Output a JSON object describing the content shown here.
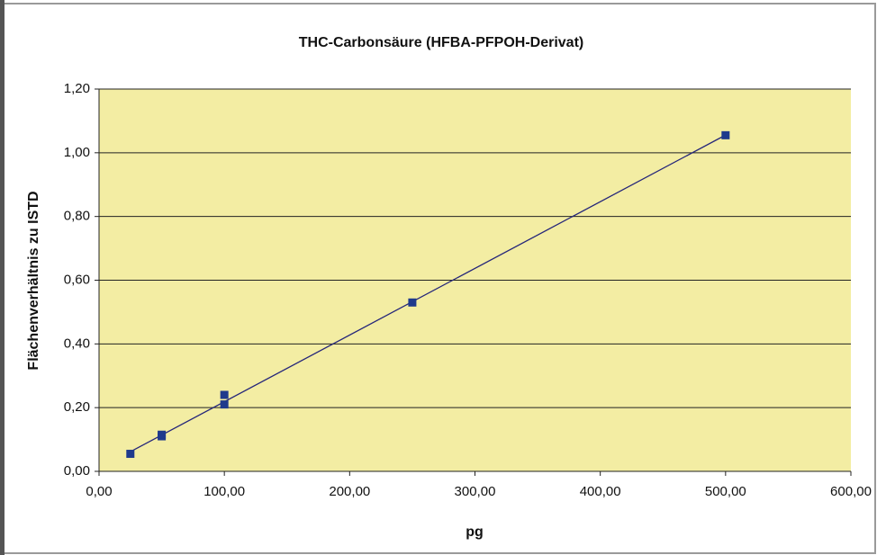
{
  "chart_data": {
    "type": "scatter",
    "title": "THC-Carbonsäure (HFBA-PFPOH-Derivat)",
    "x_label": "pg",
    "y_label": "Flächenverhältnis zu ISTD",
    "x": [
      25,
      50,
      50,
      100,
      100,
      250,
      500
    ],
    "values": [
      0.055,
      0.11,
      0.115,
      0.21,
      0.24,
      0.53,
      1.055
    ],
    "color": "#1f3a8c",
    "trendline": "linear",
    "trendline_color": "#25267a",
    "plot_background": "#f3eda3",
    "grid": true,
    "xlim": [
      0,
      600
    ],
    "xticks": [
      {
        "value": 0,
        "label": "0,00"
      },
      {
        "value": 100,
        "label": "100,00"
      },
      {
        "value": 200,
        "label": "200,00"
      },
      {
        "value": 300,
        "label": "300,00"
      },
      {
        "value": 400,
        "label": "400,00"
      },
      {
        "value": 500,
        "label": "500,00"
      },
      {
        "value": 600,
        "label": "600,00"
      }
    ],
    "ylim": [
      0,
      1.2
    ],
    "yticks": [
      {
        "value": 0,
        "label": "0,00"
      },
      {
        "value": 0.2,
        "label": "0,20"
      },
      {
        "value": 0.4,
        "label": "0,40"
      },
      {
        "value": 0.6,
        "label": "0,60"
      },
      {
        "value": 0.8,
        "label": "0,80"
      },
      {
        "value": 1.0,
        "label": "1,00"
      },
      {
        "value": 1.2,
        "label": "1,20"
      }
    ]
  }
}
